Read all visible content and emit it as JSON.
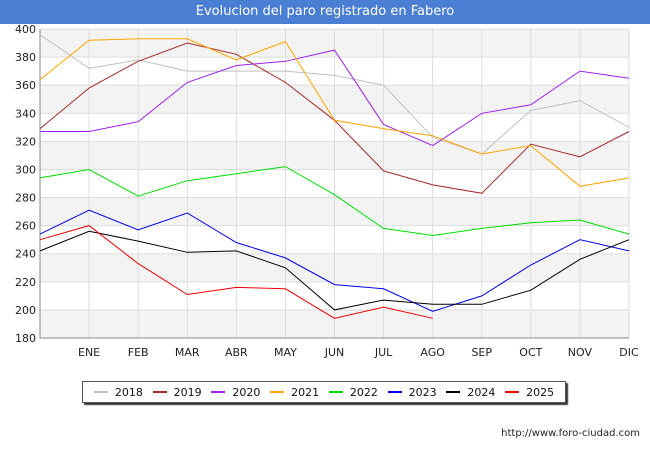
{
  "page": {
    "title": "Evolucion del paro registrado en Fabero",
    "source": "http://www.foro-ciudad.com"
  },
  "chart_data": {
    "type": "line",
    "title": "Evolucion del paro registrado en Fabero",
    "x": [
      "",
      "ENE",
      "FEB",
      "MAR",
      "ABR",
      "MAY",
      "JUN",
      "JUL",
      "AGO",
      "SEP",
      "OCT",
      "NOV",
      "DIC"
    ],
    "ylim": [
      180,
      400
    ],
    "yticks": [
      180,
      200,
      220,
      240,
      260,
      280,
      300,
      320,
      340,
      360,
      380,
      400
    ],
    "grid": true,
    "legend_position": "bottom",
    "series": [
      {
        "name": "2018",
        "color": "#c0c0c0",
        "values": [
          396,
          372,
          378,
          370,
          370,
          370,
          367,
          360,
          323,
          311,
          342,
          349,
          330
        ]
      },
      {
        "name": "2019",
        "color": "#a52a2a",
        "values": [
          329,
          358,
          377,
          390,
          382,
          362,
          335,
          299,
          289,
          283,
          318,
          309,
          327
        ]
      },
      {
        "name": "2020",
        "color": "#a020f0",
        "values": [
          327,
          327,
          334,
          362,
          374,
          377,
          385,
          332,
          317,
          340,
          346,
          370,
          365
        ]
      },
      {
        "name": "2021",
        "color": "#ffa500",
        "values": [
          364,
          392,
          393,
          393,
          378,
          391,
          335,
          329,
          324,
          311,
          317,
          288,
          294
        ]
      },
      {
        "name": "2022",
        "color": "#00dd00",
        "values": [
          294,
          300,
          281,
          292,
          297,
          302,
          282,
          258,
          253,
          258,
          262,
          264,
          254
        ]
      },
      {
        "name": "2023",
        "color": "#0000ee",
        "values": [
          254,
          271,
          257,
          269,
          248,
          237,
          218,
          215,
          199,
          210,
          232,
          250,
          242
        ]
      },
      {
        "name": "2024",
        "color": "#000000",
        "values": [
          242,
          256,
          249,
          241,
          242,
          230,
          200,
          207,
          204,
          204,
          214,
          236,
          250
        ]
      },
      {
        "name": "2025",
        "color": "#ee0000",
        "values": [
          250,
          260,
          233,
          211,
          216,
          215,
          194,
          202,
          194,
          null,
          null,
          null,
          null
        ]
      }
    ]
  }
}
